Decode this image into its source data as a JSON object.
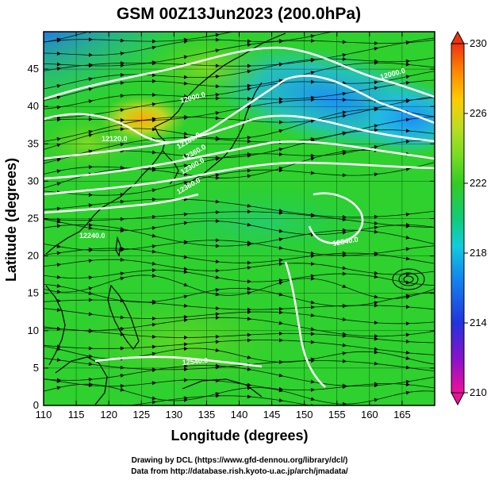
{
  "title": "GSM 00Z13Jun2023 (200.0hPa)",
  "xlabel": "Longitude (degrees)",
  "ylabel": "Latitude  (degrees)",
  "x_ticks": [
    "110",
    "115",
    "120",
    "125",
    "130",
    "135",
    "140",
    "145",
    "150",
    "155",
    "160",
    "165"
  ],
  "y_ticks": [
    "0",
    "5",
    "10",
    "15",
    "20",
    "25",
    "30",
    "35",
    "40",
    "45"
  ],
  "colorbar": {
    "min": 210,
    "max": 230,
    "labels": [
      "230",
      "226",
      "222",
      "218",
      "214",
      "210"
    ],
    "colors": [
      "#ee0088",
      "#8800cc",
      "#2222dd",
      "#0099ee",
      "#00dddd",
      "#00cc66",
      "#22cc22",
      "#66dd22",
      "#aadd22",
      "#ffcc00",
      "#ff8800",
      "#ee3311"
    ]
  },
  "contour_labels": [
    "12000.0",
    "12120.0",
    "12180.0",
    "12000.0",
    "12360.0",
    "12300.0",
    "12360.0",
    "12240.0",
    "12540.0",
    "12540.0"
  ],
  "credits": {
    "line1": "Drawing by DCL (https://www.gfd-dennou.org/library/dcl/)",
    "line2": "Data from http://database.rish.kyoto-u.ac.jp/arch/jmadata/"
  },
  "map": {
    "lon_range": [
      110,
      170
    ],
    "lat_range": [
      0,
      50
    ],
    "variable": "temperature",
    "contour_variable": "geopotential height",
    "overlay": "streamlines",
    "grid": true
  }
}
